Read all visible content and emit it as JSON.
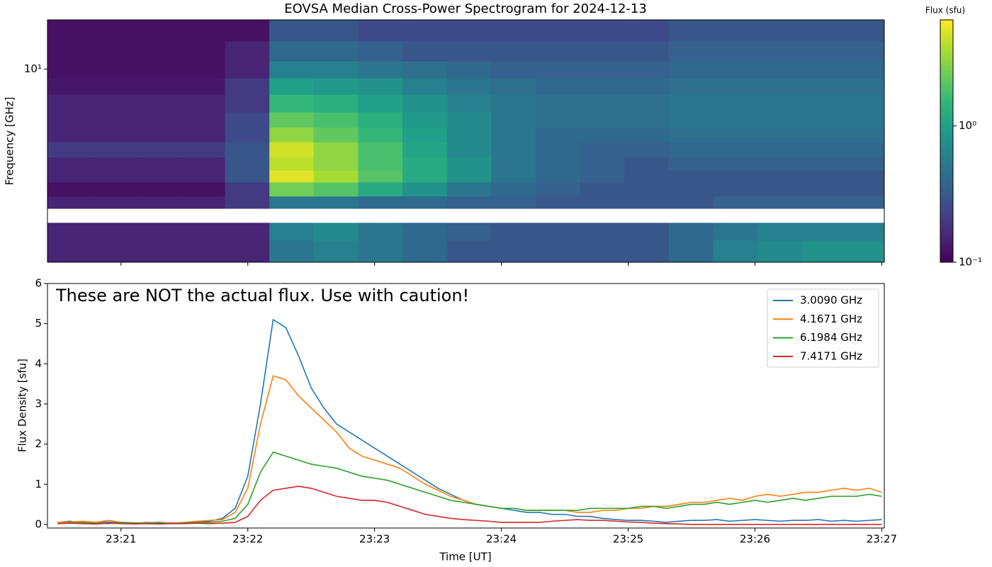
{
  "chart_data": [
    {
      "type": "heatmap",
      "title": "EOVSA Median Cross-Power Spectrogram for 2024-12-13",
      "ylabel": "Frequency [GHz]",
      "log_y": true,
      "xlim": [
        20.42,
        27.02
      ],
      "ylim": [
        1,
        18
      ],
      "yticks": [
        {
          "value": 10,
          "label": "10¹"
        }
      ],
      "x_edges": [
        20.42,
        20.77,
        21.12,
        21.47,
        21.82,
        22.17,
        22.52,
        22.87,
        23.22,
        23.57,
        23.92,
        24.27,
        24.62,
        24.97,
        25.32,
        25.67,
        26.02,
        26.37,
        26.72,
        27.02
      ],
      "y_edges": [
        1,
        1.3,
        1.6,
        1.9,
        2.2,
        2.6,
        3.0,
        3.5,
        4.2,
        5,
        6,
        7.4,
        9,
        11,
        14,
        18
      ],
      "z": [
        [
          0.15,
          0.15,
          0.15,
          0.15,
          0.15,
          0.5,
          0.6,
          0.5,
          0.4,
          0.3,
          0.3,
          0.3,
          0.3,
          0.3,
          0.4,
          0.6,
          0.7,
          0.8,
          0.8
        ],
        [
          0.15,
          0.15,
          0.15,
          0.15,
          0.15,
          0.6,
          0.7,
          0.5,
          0.4,
          0.35,
          0.3,
          0.3,
          0.3,
          0.3,
          0.4,
          0.5,
          0.6,
          0.6,
          0.6
        ],
        [
          null,
          null,
          null,
          null,
          null,
          null,
          null,
          null,
          null,
          null,
          null,
          null,
          null,
          null,
          null,
          null,
          null,
          null,
          null
        ],
        [
          0.15,
          0.15,
          0.15,
          0.15,
          0.2,
          0.5,
          0.5,
          0.4,
          0.4,
          0.35,
          0.35,
          0.3,
          0.3,
          0.3,
          0.3,
          0.35,
          0.35,
          0.35,
          0.35
        ],
        [
          0.12,
          0.12,
          0.12,
          0.12,
          0.2,
          2.5,
          2.0,
          1.2,
          0.8,
          0.5,
          0.4,
          0.35,
          0.3,
          0.3,
          0.3,
          0.3,
          0.3,
          0.3,
          0.3
        ],
        [
          0.15,
          0.15,
          0.15,
          0.15,
          0.3,
          5.0,
          3.5,
          2.0,
          1.2,
          0.8,
          0.5,
          0.4,
          0.35,
          0.3,
          0.3,
          0.3,
          0.3,
          0.3,
          0.3
        ],
        [
          0.15,
          0.15,
          0.15,
          0.15,
          0.3,
          4.0,
          3.0,
          1.8,
          1.2,
          0.8,
          0.5,
          0.4,
          0.35,
          0.3,
          0.35,
          0.35,
          0.35,
          0.35,
          0.35
        ],
        [
          0.2,
          0.2,
          0.2,
          0.2,
          0.3,
          4.5,
          3.0,
          1.8,
          1.1,
          0.7,
          0.5,
          0.4,
          0.35,
          0.35,
          0.4,
          0.4,
          0.4,
          0.4,
          0.4
        ],
        [
          0.15,
          0.15,
          0.15,
          0.15,
          0.25,
          3.0,
          2.2,
          1.5,
          1.0,
          0.7,
          0.5,
          0.4,
          0.4,
          0.4,
          0.45,
          0.45,
          0.45,
          0.45,
          0.45
        ],
        [
          0.15,
          0.15,
          0.15,
          0.15,
          0.25,
          2.2,
          1.8,
          1.3,
          0.9,
          0.7,
          0.5,
          0.45,
          0.45,
          0.45,
          0.5,
          0.5,
          0.5,
          0.5,
          0.5
        ],
        [
          0.15,
          0.15,
          0.15,
          0.15,
          0.2,
          1.5,
          1.3,
          1.0,
          0.8,
          0.6,
          0.5,
          0.45,
          0.45,
          0.45,
          0.5,
          0.5,
          0.5,
          0.5,
          0.5
        ],
        [
          0.13,
          0.13,
          0.13,
          0.13,
          0.2,
          1.0,
          0.9,
          0.8,
          0.6,
          0.5,
          0.45,
          0.4,
          0.4,
          0.4,
          0.45,
          0.45,
          0.45,
          0.45,
          0.45
        ],
        [
          0.12,
          0.12,
          0.12,
          0.12,
          0.15,
          0.6,
          0.6,
          0.5,
          0.45,
          0.4,
          0.35,
          0.35,
          0.35,
          0.35,
          0.4,
          0.4,
          0.4,
          0.4,
          0.4
        ],
        [
          0.12,
          0.12,
          0.12,
          0.12,
          0.15,
          0.4,
          0.4,
          0.35,
          0.3,
          0.3,
          0.3,
          0.3,
          0.3,
          0.3,
          0.35,
          0.35,
          0.35,
          0.35,
          0.35
        ],
        [
          0.12,
          0.12,
          0.12,
          0.12,
          0.12,
          0.3,
          0.3,
          0.25,
          0.25,
          0.25,
          0.25,
          0.25,
          0.25,
          0.25,
          0.3,
          0.3,
          0.3,
          0.3,
          0.3
        ]
      ],
      "colorbar": {
        "label": "Flux (sfu)",
        "log": true,
        "clim": [
          0.1,
          6
        ],
        "ticks": [
          {
            "value": 0.1,
            "label": "10⁻¹"
          },
          {
            "value": 1,
            "label": "10⁰"
          }
        ]
      }
    },
    {
      "type": "line",
      "xlabel": "Time [UT]",
      "ylabel": "Flux Density [sfu]",
      "annotation": "These are NOT the actual flux. Use with caution!",
      "legend": "upper right",
      "xlim": [
        20.42,
        27.02
      ],
      "ylim": [
        -0.09,
        6
      ],
      "yticks": [
        0,
        1,
        2,
        3,
        4,
        5,
        6
      ],
      "xticks": [
        {
          "value": 21,
          "label": "23:21"
        },
        {
          "value": 22,
          "label": "23:22"
        },
        {
          "value": 23,
          "label": "23:23"
        },
        {
          "value": 24,
          "label": "23:24"
        },
        {
          "value": 25,
          "label": "23:25"
        },
        {
          "value": 26,
          "label": "23:26"
        },
        {
          "value": 27,
          "label": "23:27"
        }
      ],
      "x": [
        20.5,
        20.6,
        20.7,
        20.8,
        20.9,
        21.0,
        21.1,
        21.2,
        21.3,
        21.4,
        21.5,
        21.6,
        21.7,
        21.8,
        21.9,
        22.0,
        22.1,
        22.2,
        22.3,
        22.4,
        22.5,
        22.6,
        22.7,
        22.8,
        22.9,
        23.0,
        23.1,
        23.2,
        23.3,
        23.4,
        23.5,
        23.6,
        23.7,
        23.8,
        23.9,
        24.0,
        24.1,
        24.2,
        24.3,
        24.4,
        24.5,
        24.6,
        24.7,
        24.8,
        24.9,
        25.0,
        25.1,
        25.2,
        25.3,
        25.4,
        25.5,
        25.6,
        25.7,
        25.8,
        25.9,
        26.0,
        26.1,
        26.2,
        26.3,
        26.4,
        26.5,
        26.6,
        26.7,
        26.8,
        26.9,
        27.0
      ],
      "series": [
        {
          "name": "3.0090 GHz",
          "color": "#1f77b4",
          "values": [
            0.05,
            0.08,
            0.03,
            0.05,
            0.06,
            0.04,
            0.02,
            0.05,
            0.03,
            0.04,
            0.03,
            0.05,
            0.08,
            0.15,
            0.4,
            1.2,
            3.0,
            5.1,
            4.9,
            4.2,
            3.4,
            2.9,
            2.5,
            2.3,
            2.1,
            1.9,
            1.7,
            1.5,
            1.3,
            1.1,
            0.9,
            0.75,
            0.6,
            0.5,
            0.45,
            0.4,
            0.35,
            0.3,
            0.3,
            0.25,
            0.25,
            0.2,
            0.2,
            0.15,
            0.12,
            0.1,
            0.1,
            0.08,
            0.05,
            0.08,
            0.1,
            0.1,
            0.12,
            0.08,
            0.1,
            0.12,
            0.1,
            0.08,
            0.1,
            0.1,
            0.12,
            0.08,
            0.1,
            0.08,
            0.1,
            0.12
          ]
        },
        {
          "name": "4.1671 GHz",
          "color": "#ff7f0e",
          "values": [
            0.05,
            0.06,
            0.08,
            0.05,
            0.1,
            0.05,
            0.03,
            0.04,
            0.05,
            0.03,
            0.05,
            0.08,
            0.1,
            0.12,
            0.3,
            0.9,
            2.5,
            3.7,
            3.6,
            3.2,
            2.9,
            2.6,
            2.3,
            1.9,
            1.7,
            1.6,
            1.5,
            1.4,
            1.2,
            1.0,
            0.85,
            0.7,
            0.6,
            0.5,
            0.45,
            0.4,
            0.4,
            0.35,
            0.35,
            0.35,
            0.35,
            0.3,
            0.3,
            0.35,
            0.35,
            0.4,
            0.4,
            0.45,
            0.45,
            0.5,
            0.55,
            0.55,
            0.6,
            0.65,
            0.6,
            0.7,
            0.75,
            0.7,
            0.75,
            0.8,
            0.8,
            0.85,
            0.9,
            0.85,
            0.9,
            0.8
          ]
        },
        {
          "name": "6.1984 GHz",
          "color": "#2ca02c",
          "values": [
            0.02,
            0.04,
            0.05,
            0.03,
            0.02,
            0.05,
            0.04,
            0.03,
            0.05,
            0.02,
            0.04,
            0.05,
            0.05,
            0.08,
            0.15,
            0.5,
            1.3,
            1.8,
            1.7,
            1.6,
            1.5,
            1.45,
            1.4,
            1.3,
            1.2,
            1.15,
            1.1,
            1.0,
            0.9,
            0.8,
            0.7,
            0.6,
            0.55,
            0.5,
            0.45,
            0.4,
            0.4,
            0.35,
            0.35,
            0.35,
            0.35,
            0.35,
            0.4,
            0.4,
            0.4,
            0.4,
            0.45,
            0.45,
            0.4,
            0.45,
            0.5,
            0.5,
            0.55,
            0.5,
            0.55,
            0.6,
            0.55,
            0.6,
            0.65,
            0.6,
            0.65,
            0.7,
            0.7,
            0.7,
            0.75,
            0.7
          ]
        },
        {
          "name": "7.4171 GHz",
          "color": "#d62728",
          "values": [
            0.02,
            0.03,
            0.02,
            0.01,
            0.03,
            0.02,
            0.01,
            0.02,
            0.01,
            0.02,
            0.02,
            0.03,
            0.02,
            0.03,
            0.05,
            0.2,
            0.6,
            0.85,
            0.9,
            0.95,
            0.9,
            0.8,
            0.7,
            0.65,
            0.6,
            0.6,
            0.55,
            0.45,
            0.35,
            0.25,
            0.2,
            0.15,
            0.12,
            0.1,
            0.08,
            0.05,
            0.05,
            0.05,
            0.05,
            0.08,
            0.1,
            0.12,
            0.1,
            0.1,
            0.08,
            0.06,
            0.05,
            0.03,
            0.02,
            0.01,
            0,
            0,
            0,
            0,
            0,
            0,
            0,
            0,
            0,
            0,
            0,
            0,
            0,
            0,
            0,
            0
          ]
        }
      ]
    }
  ]
}
